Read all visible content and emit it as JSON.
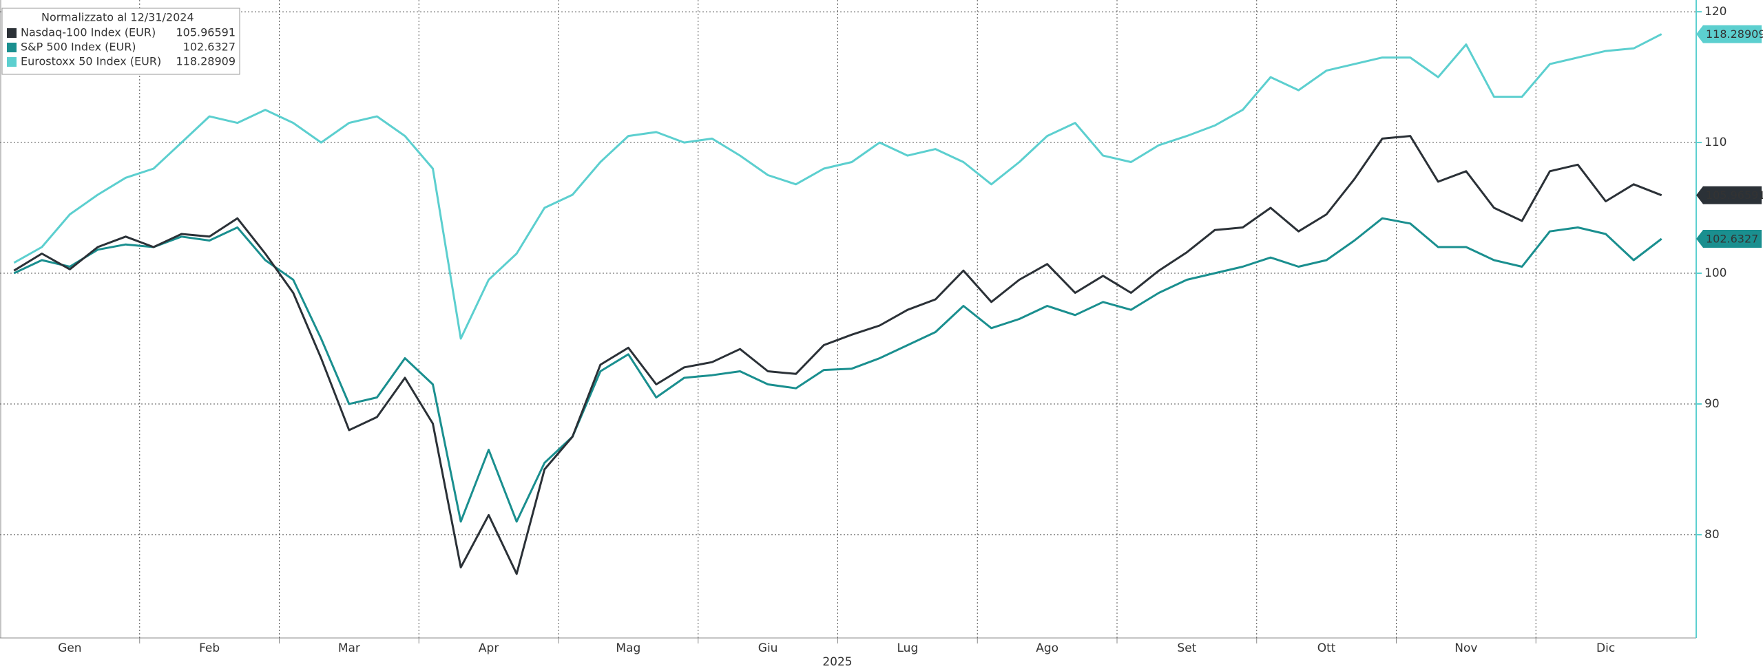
{
  "chart_data": {
    "type": "line",
    "legend_title": "Normalizzato al 12/31/2024",
    "x_group_label": "2025",
    "categories": [
      "Gen",
      null,
      null,
      null,
      null,
      "Feb",
      null,
      null,
      null,
      null,
      "Mar",
      null,
      null,
      null,
      null,
      "Apr",
      null,
      null,
      null,
      null,
      "Mag",
      null,
      null,
      null,
      null,
      "Giu",
      null,
      null,
      null,
      null,
      "Lug",
      null,
      null,
      null,
      null,
      "Ago",
      null,
      null,
      null,
      null,
      "Set",
      null,
      null,
      null,
      null,
      "Ott",
      null,
      null,
      null,
      null,
      "Nov",
      null,
      null,
      null,
      null,
      "Dic",
      null,
      null,
      null,
      null
    ],
    "series": [
      {
        "name": "Nasdaq-100 Index (EUR)",
        "color": "#2b3137",
        "values": [
          100.2,
          101.5,
          100.3,
          102.0,
          102.8,
          102.0,
          103.0,
          102.8,
          104.2,
          101.5,
          98.5,
          93.5,
          88.0,
          89.0,
          92.0,
          88.5,
          77.5,
          81.5,
          77.0,
          85.0,
          87.5,
          93.0,
          94.3,
          91.5,
          92.8,
          93.2,
          94.2,
          92.5,
          92.3,
          94.5,
          95.3,
          96.0,
          97.2,
          98.0,
          100.2,
          97.8,
          99.5,
          100.7,
          98.5,
          99.8,
          98.5,
          100.2,
          101.6,
          103.3,
          103.5,
          105.0,
          103.2,
          104.5,
          107.2,
          110.3,
          110.5,
          107.0,
          107.8,
          105.0,
          104.0,
          107.8,
          108.3,
          105.5,
          106.8,
          105.96591
        ]
      },
      {
        "name": "S&P 500 Index (EUR)",
        "color": "#1a8f8f",
        "values": [
          100.0,
          101.0,
          100.5,
          101.8,
          102.2,
          102.0,
          102.8,
          102.5,
          103.5,
          101.0,
          99.5,
          95.0,
          90.0,
          90.5,
          93.5,
          91.5,
          81.0,
          86.5,
          81.0,
          85.5,
          87.5,
          92.5,
          93.8,
          90.5,
          92.0,
          92.2,
          92.5,
          91.5,
          91.2,
          92.6,
          92.7,
          93.5,
          94.5,
          95.5,
          97.5,
          95.8,
          96.5,
          97.5,
          96.8,
          97.8,
          97.2,
          98.5,
          99.5,
          100.0,
          100.5,
          101.2,
          100.5,
          101.0,
          102.5,
          104.2,
          103.8,
          102.0,
          102.0,
          101.0,
          100.5,
          103.2,
          103.5,
          103.0,
          101.0,
          102.6327
        ]
      },
      {
        "name": "Eurostoxx 50 Index (EUR)",
        "color": "#5ccfcf",
        "values": [
          100.8,
          102.0,
          104.5,
          106.0,
          107.3,
          108.0,
          110.0,
          112.0,
          111.5,
          112.5,
          111.5,
          110.0,
          111.5,
          112.0,
          110.5,
          108.0,
          95.0,
          99.5,
          101.5,
          105.0,
          106.0,
          108.5,
          110.5,
          110.8,
          110.0,
          110.3,
          109.0,
          107.5,
          106.8,
          108.0,
          108.5,
          110.0,
          109.0,
          109.5,
          108.5,
          106.8,
          108.5,
          110.5,
          111.5,
          109.0,
          108.5,
          109.8,
          110.5,
          111.3,
          112.5,
          115.0,
          114.0,
          115.5,
          116.0,
          116.5,
          116.5,
          115.0,
          117.5,
          113.5,
          113.5,
          116.0,
          116.5,
          117.0,
          117.2,
          118.28909
        ]
      }
    ],
    "ylim": [
      72.1,
      120.9
    ],
    "yticks": [
      80,
      90,
      100,
      110,
      120
    ],
    "grid": true
  }
}
